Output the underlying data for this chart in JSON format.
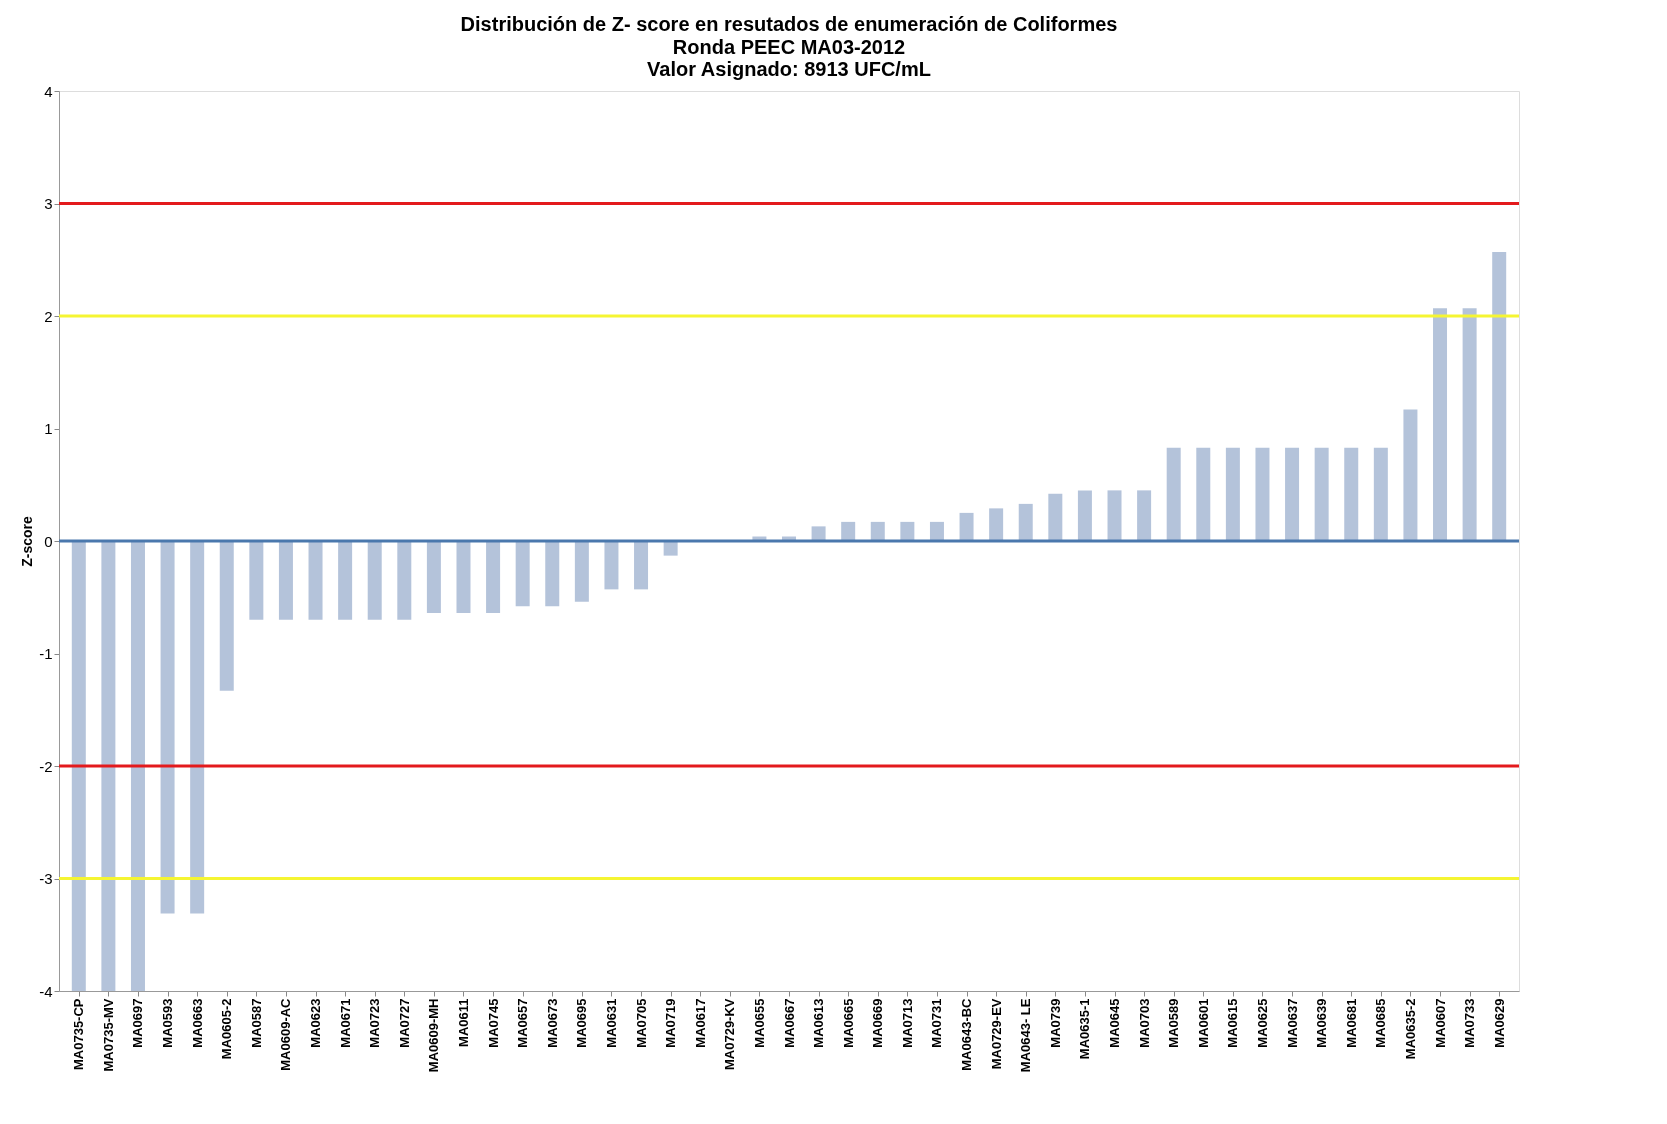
{
  "chart_data": {
    "type": "bar",
    "title": "Distribución de Z- score en resutados de enumeración de Coliformes",
    "subtitle": "Ronda PEEC MA03-2012\nValor Asignado:  8913 UFC/mL",
    "ylabel": "Z-score",
    "categories": [
      "MA0735-CP",
      "MA0735-MV",
      "MA0697",
      "MA0593",
      "MA0663",
      "MA0605-2",
      "MA0587",
      "MA0609-AC",
      "MA0623",
      "MA0671",
      "MA0723",
      "MA0727",
      "MA0609-MH",
      "MA0611",
      "MA0745",
      "MA0657",
      "MA0673",
      "MA0695",
      "MA0631",
      "MA0705",
      "MA0719",
      "MA0617",
      "MA0729-KV",
      "MA0655",
      "MA0667",
      "MA0613",
      "MA0665",
      "MA0669",
      "MA0713",
      "MA0731",
      "MA0643-BC",
      "MA0729-EV",
      "MA0643- LE",
      "MA0739",
      "MA0635-1",
      "MA0645",
      "MA0703",
      "MA0589",
      "MA0601",
      "MA0615",
      "MA0625",
      "MA0637",
      "MA0639",
      "MA0681",
      "MA0685",
      "MA0635-2",
      "MA0607",
      "MA0733",
      "MA0629"
    ],
    "values": [
      -4,
      -4,
      -4,
      -3.31,
      -3.31,
      -1.33,
      -0.7,
      -0.7,
      -0.7,
      -0.7,
      -0.7,
      -0.7,
      -0.64,
      -0.64,
      -0.64,
      -0.58,
      -0.58,
      -0.54,
      -0.43,
      -0.43,
      -0.13,
      0,
      0,
      0.04,
      0.04,
      0.13,
      0.17,
      0.17,
      0.17,
      0.17,
      0.25,
      0.29,
      0.33,
      0.42,
      0.45,
      0.45,
      0.45,
      0.83,
      0.83,
      0.83,
      0.83,
      0.83,
      0.83,
      0.83,
      0.83,
      1.17,
      2.07,
      2.07,
      2.57
    ],
    "color": "#b4c3da",
    "ylim": [
      -4,
      4
    ],
    "yticks": [
      -4,
      -3,
      -2,
      -1,
      0,
      1,
      2,
      3,
      4
    ],
    "grid": false,
    "ref_lines": [
      {
        "axis": "y",
        "value": 3,
        "color": "#e31a1c"
      },
      {
        "axis": "y",
        "value": 2,
        "color": "#f5f532"
      },
      {
        "axis": "y",
        "value": 0,
        "color": "#4a78ad"
      },
      {
        "axis": "y",
        "value": -2,
        "color": "#e31a1c"
      },
      {
        "axis": "y",
        "value": -3,
        "color": "#f5f532"
      }
    ]
  }
}
